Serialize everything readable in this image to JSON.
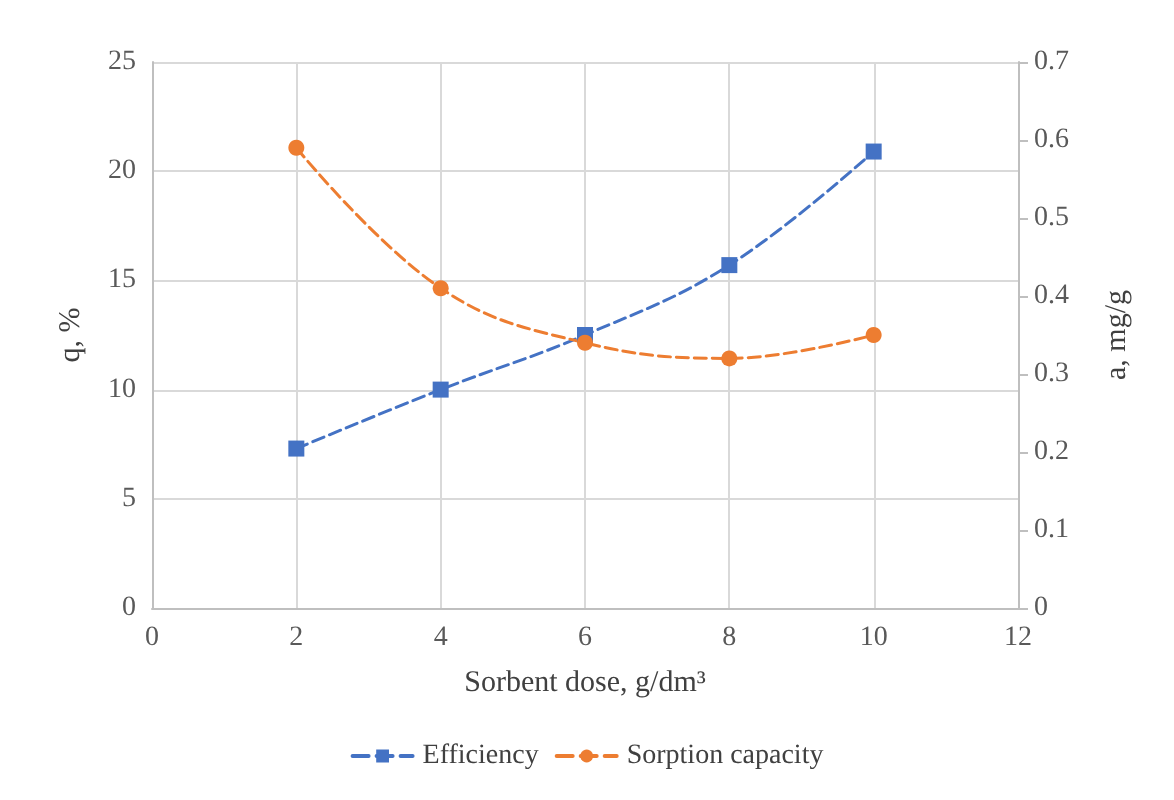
{
  "chart_data": {
    "type": "line",
    "xlabel": "Sorbent dose, g/dm³",
    "ylabel": "q, %",
    "y2label": "a, mg/g",
    "x": [
      2,
      4,
      6,
      8,
      10
    ],
    "series": [
      {
        "name": "Efficiency",
        "color": "#4472c4",
        "marker": "square",
        "values": [
          7.3,
          10.0,
          12.5,
          15.7,
          20.9
        ]
      },
      {
        "name": "Sorption capacity",
        "color": "#ed7d31",
        "marker": "circle",
        "axis": "y2",
        "values": [
          0.59,
          0.41,
          0.34,
          0.32,
          0.35
        ]
      }
    ],
    "xlim": [
      0,
      12
    ],
    "xticks": [
      0,
      2,
      4,
      6,
      8,
      10,
      12
    ],
    "ylim": [
      0,
      25
    ],
    "yticks": [
      0,
      5,
      10,
      15,
      20,
      25
    ],
    "y2lim": [
      0,
      0.7
    ],
    "y2ticks": [
      0,
      0.1,
      0.2,
      0.3,
      0.4,
      0.5,
      0.6,
      0.7
    ],
    "grid": true,
    "legend": "bottom",
    "line_style": "dashed"
  }
}
